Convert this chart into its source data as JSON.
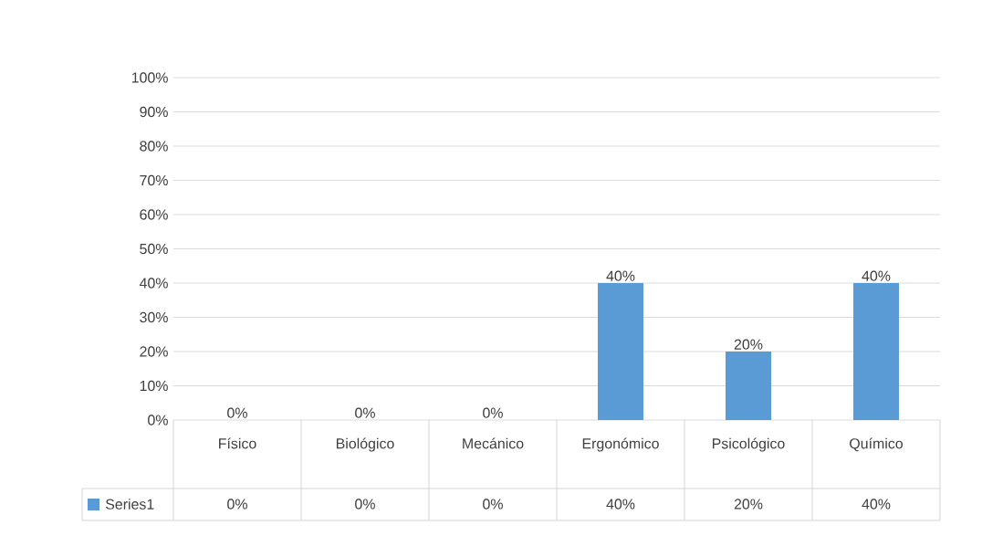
{
  "chart_data": {
    "type": "bar",
    "categories": [
      "Físico",
      "Biológico",
      "Mecánico",
      "Ergonómico",
      "Psicológico",
      "Químico"
    ],
    "series": [
      {
        "name": "Series1",
        "color": "#5b9bd5",
        "values": [
          0,
          0,
          0,
          40,
          20,
          40
        ],
        "value_labels": [
          "0%",
          "0%",
          "0%",
          "40%",
          "20%",
          "40%"
        ]
      }
    ],
    "ylim": [
      0,
      100
    ],
    "yticks": [
      {
        "value": 0,
        "label": "0%"
      },
      {
        "value": 10,
        "label": "10%"
      },
      {
        "value": 20,
        "label": "20%"
      },
      {
        "value": 30,
        "label": "30%"
      },
      {
        "value": 40,
        "label": "40%"
      },
      {
        "value": 50,
        "label": "50%"
      },
      {
        "value": 60,
        "label": "60%"
      },
      {
        "value": 70,
        "label": "70%"
      },
      {
        "value": 80,
        "label": "80%"
      },
      {
        "value": 90,
        "label": "90%"
      },
      {
        "value": 100,
        "label": "100%"
      }
    ],
    "grid": "y",
    "legend": "bottom"
  }
}
